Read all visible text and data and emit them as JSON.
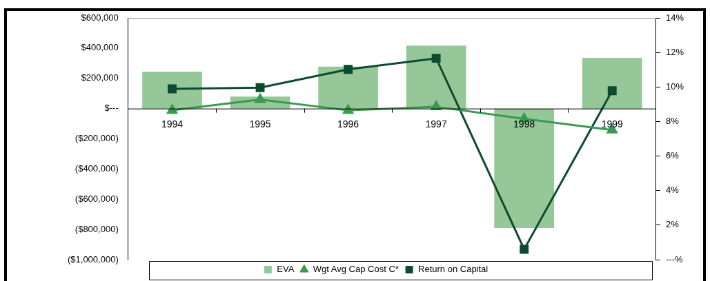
{
  "chart_data": {
    "type": "bar",
    "categories": [
      "1994",
      "1995",
      "1996",
      "1997",
      "1998",
      "1999"
    ],
    "series": [
      {
        "name": "EVA",
        "color": "#95c799",
        "values": [
          245000,
          79000,
          277000,
          416000,
          -790000,
          336000
        ]
      },
      {
        "name": "Wgt Avg Cap Cost C*",
        "type": "line",
        "axis": "y2",
        "marker": "triangle",
        "color": "#3a9a50",
        "values": [
          8.65,
          9.27,
          8.65,
          8.85,
          8.16,
          7.51
        ]
      },
      {
        "name": "Return on Capital",
        "type": "line",
        "axis": "y2",
        "marker": "square",
        "color": "#0d4a30",
        "values": [
          9.89,
          9.96,
          11.02,
          11.66,
          0.6,
          9.78
        ]
      }
    ],
    "ylim": [
      -1000000,
      600000
    ],
    "yticks": [
      {
        "value": 600000,
        "label": "$600,000"
      },
      {
        "value": 400000,
        "label": "$400,000"
      },
      {
        "value": 200000,
        "label": "$200,000"
      },
      {
        "value": 0,
        "label": "$---"
      },
      {
        "value": -200000,
        "label": "($200,000)"
      },
      {
        "value": -400000,
        "label": "($400,000)"
      },
      {
        "value": -600000,
        "label": "($600,000)"
      },
      {
        "value": -800000,
        "label": "($800,000)"
      },
      {
        "value": -1000000,
        "label": "($1,000,000)"
      }
    ],
    "y2lim": [
      0,
      14
    ],
    "y2ticks": [
      {
        "value": 14,
        "label": "14%"
      },
      {
        "value": 12,
        "label": "12%"
      },
      {
        "value": 10,
        "label": "10%"
      },
      {
        "value": 8,
        "label": "8%"
      },
      {
        "value": 6,
        "label": "6%"
      },
      {
        "value": 4,
        "label": "4%"
      },
      {
        "value": 2,
        "label": "2%"
      },
      {
        "value": 0,
        "label": "---%"
      }
    ],
    "grid": false,
    "legend": "bottom"
  }
}
